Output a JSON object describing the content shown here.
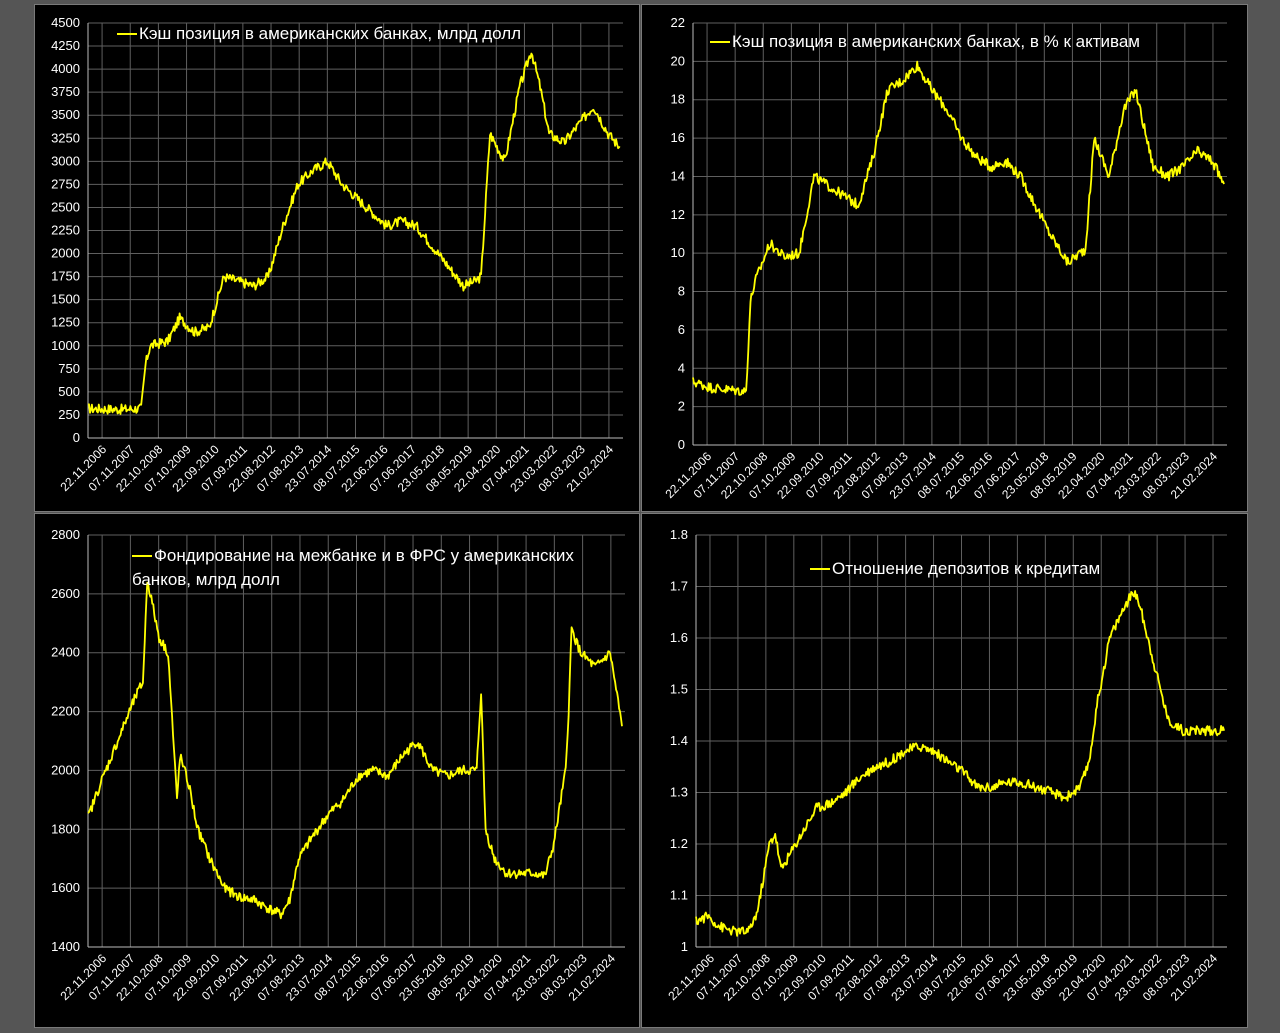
{
  "colors": {
    "background": "#555555",
    "panel": "#000000",
    "series": "#ffff00",
    "grid": "#5f5f5f",
    "text": "#ffffff"
  },
  "shared_x_labels": [
    "22.11.2006",
    "07.11.2007",
    "22.10.2008",
    "07.10.2009",
    "22.09.2010",
    "07.09.2011",
    "22.08.2012",
    "07.08.2013",
    "23.07.2014",
    "08.07.2015",
    "22.06.2016",
    "07.06.2017",
    "23.05.2018",
    "08.05.2019",
    "22.04.2020",
    "07.04.2021",
    "23.03.2022",
    "08.03.2023",
    "21.02.2024"
  ],
  "chart_data": [
    {
      "type": "line",
      "legend": [
        "Кэш позиция в американских банках, млрд долл"
      ],
      "ylim": [
        0,
        4500
      ],
      "yticks": [
        0,
        250,
        500,
        750,
        1000,
        1250,
        1500,
        1750,
        2000,
        2250,
        2500,
        2750,
        3000,
        3250,
        3500,
        3750,
        4000,
        4250,
        4500
      ],
      "grid": true,
      "legend_position": "top",
      "series": [
        {
          "x": [
            2006.9,
            2008.0,
            2008.7,
            2008.85,
            2009.0,
            2009.6,
            2010.0,
            2010.5,
            2011.0,
            2011.5,
            2012.0,
            2012.5,
            2013.0,
            2013.5,
            2014.0,
            2014.5,
            2015.0,
            2015.5,
            2016.0,
            2016.5,
            2017.0,
            2017.5,
            2018.0,
            2018.5,
            2019.0,
            2019.6,
            2020.0,
            2020.2,
            2020.5,
            2021.0,
            2021.5,
            2021.9,
            2022.2,
            2022.5,
            2023.0,
            2023.5,
            2024.0,
            2024.5,
            2024.9
          ],
          "values": [
            320,
            310,
            320,
            800,
            1000,
            1050,
            1300,
            1150,
            1200,
            1750,
            1700,
            1650,
            1750,
            2300,
            2750,
            2900,
            3000,
            2750,
            2600,
            2450,
            2300,
            2350,
            2300,
            2100,
            1900,
            1650,
            1700,
            1750,
            3300,
            3000,
            3800,
            4200,
            3800,
            3300,
            3200,
            3400,
            3600,
            3300,
            3150
          ]
        }
      ]
    },
    {
      "type": "line",
      "legend": [
        "Кэш позиция в американских банках, в % к активам"
      ],
      "ylim": [
        0,
        22
      ],
      "yticks": [
        0,
        2,
        4,
        6,
        8,
        10,
        12,
        14,
        16,
        18,
        20,
        22
      ],
      "grid": true,
      "legend_position": "top",
      "series": [
        {
          "x": [
            2006.9,
            2007.5,
            2008.0,
            2008.7,
            2008.85,
            2009.0,
            2009.5,
            2010.0,
            2010.5,
            2011.0,
            2011.5,
            2012.0,
            2012.5,
            2013.0,
            2013.5,
            2014.0,
            2014.5,
            2015.0,
            2015.5,
            2016.0,
            2016.5,
            2017.0,
            2017.5,
            2018.0,
            2018.5,
            2019.0,
            2019.6,
            2020.0,
            2020.2,
            2020.5,
            2021.0,
            2021.5,
            2021.9,
            2022.2,
            2022.5,
            2023.0,
            2023.5,
            2024.0,
            2024.5,
            2024.9
          ],
          "values": [
            3.3,
            3.0,
            2.9,
            2.8,
            7.5,
            8.5,
            10.5,
            9.8,
            10.0,
            14.0,
            13.5,
            13.0,
            12.5,
            15.0,
            18.5,
            19.0,
            19.8,
            18.5,
            17.5,
            16.0,
            15.0,
            14.5,
            14.8,
            14.0,
            12.5,
            11.0,
            9.5,
            10.0,
            10.2,
            16.0,
            14.0,
            17.5,
            18.5,
            16.5,
            14.5,
            14.0,
            14.5,
            15.3,
            14.8,
            13.6
          ]
        }
      ]
    },
    {
      "type": "line",
      "legend": [
        "Фондирование на межбанке и в ФРС у американских",
        "банков, млрд долл"
      ],
      "ylim": [
        1400,
        2800
      ],
      "yticks": [
        1400,
        1600,
        1800,
        2000,
        2200,
        2400,
        2600,
        2800
      ],
      "grid": true,
      "legend_position": "top",
      "series": [
        {
          "x": [
            2006.9,
            2007.3,
            2007.7,
            2008.1,
            2008.5,
            2008.75,
            2008.9,
            2009.3,
            2009.6,
            2009.9,
            2010.0,
            2010.3,
            2010.6,
            2011.0,
            2011.5,
            2012.0,
            2012.5,
            2013.0,
            2013.4,
            2013.7,
            2014.0,
            2014.5,
            2015.0,
            2015.5,
            2016.0,
            2016.5,
            2017.0,
            2017.5,
            2018.0,
            2018.5,
            2019.0,
            2019.5,
            2020.0,
            2020.15,
            2020.3,
            2020.6,
            2021.0,
            2021.5,
            2022.0,
            2022.3,
            2022.6,
            2023.0,
            2023.1,
            2023.2,
            2023.5,
            2024.0,
            2024.5,
            2024.9
          ],
          "values": [
            1840,
            1950,
            2050,
            2150,
            2250,
            2300,
            2650,
            2450,
            2400,
            1900,
            2050,
            1950,
            1800,
            1700,
            1600,
            1570,
            1560,
            1530,
            1510,
            1560,
            1700,
            1780,
            1850,
            1900,
            1980,
            2000,
            1980,
            2050,
            2100,
            2000,
            1980,
            2000,
            2000,
            2270,
            1800,
            1700,
            1650,
            1650,
            1650,
            1640,
            1750,
            2000,
            2200,
            2480,
            2400,
            2350,
            2400,
            2150
          ]
        }
      ]
    },
    {
      "type": "line",
      "legend": [
        "Отношение депозитов к кредитам"
      ],
      "ylim": [
        1,
        1.8
      ],
      "yticks": [
        1,
        1.1,
        1.2,
        1.3,
        1.4,
        1.5,
        1.6,
        1.7,
        1.8
      ],
      "grid": true,
      "legend_position": "top",
      "series": [
        {
          "x": [
            2006.9,
            2007.3,
            2007.7,
            2008.2,
            2008.7,
            2009.0,
            2009.4,
            2009.6,
            2009.8,
            2010.0,
            2010.5,
            2011.0,
            2011.5,
            2012.0,
            2012.5,
            2013.0,
            2013.5,
            2014.0,
            2014.5,
            2015.0,
            2015.5,
            2016.0,
            2016.5,
            2017.0,
            2017.5,
            2018.0,
            2018.5,
            2019.0,
            2019.5,
            2020.0,
            2020.3,
            2020.6,
            2021.0,
            2021.5,
            2021.8,
            2022.0,
            2022.3,
            2022.6,
            2023.0,
            2023.5,
            2024.0,
            2024.5,
            2024.9
          ],
          "values": [
            1.05,
            1.06,
            1.04,
            1.03,
            1.03,
            1.07,
            1.2,
            1.22,
            1.15,
            1.17,
            1.22,
            1.27,
            1.28,
            1.3,
            1.33,
            1.35,
            1.36,
            1.38,
            1.39,
            1.38,
            1.36,
            1.34,
            1.31,
            1.31,
            1.32,
            1.32,
            1.31,
            1.3,
            1.29,
            1.31,
            1.36,
            1.48,
            1.6,
            1.66,
            1.69,
            1.67,
            1.6,
            1.53,
            1.44,
            1.42,
            1.42,
            1.42,
            1.42
          ]
        }
      ]
    }
  ]
}
